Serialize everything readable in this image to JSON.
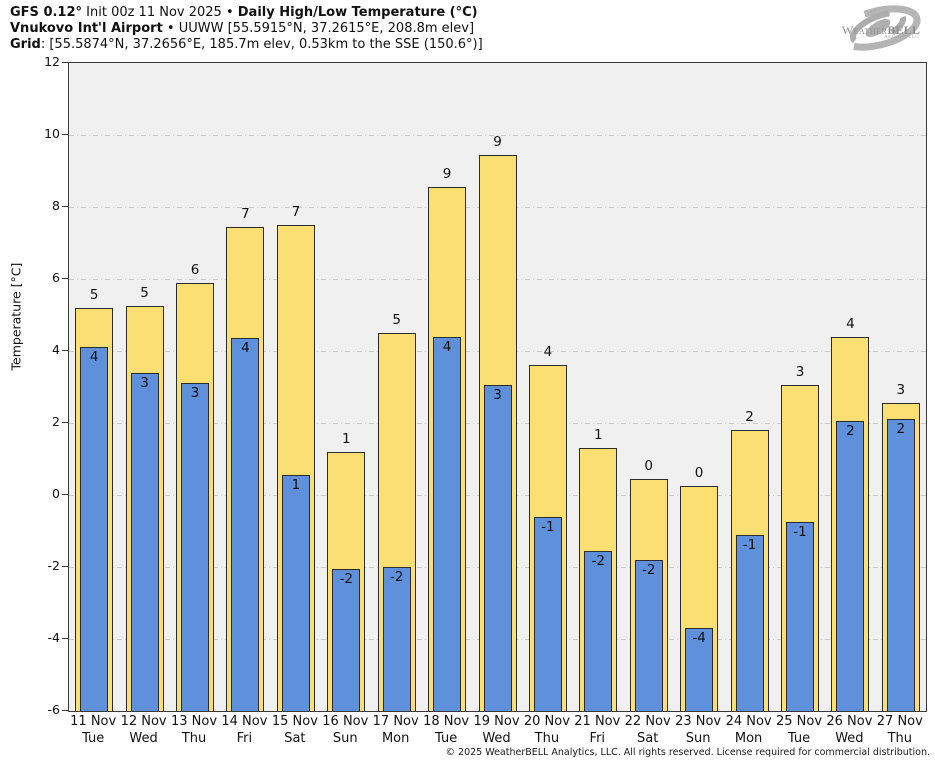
{
  "header": {
    "line1_bold1": "GFS 0.12°",
    "line1_mid": " Init 00z 11 Nov 2025 • ",
    "line1_bold2": "Daily High/Low Temperature (°C)",
    "line2_bold": "Vnukovo Int'l Airport",
    "line2_mid": " • UUWW [55.5915°N, 37.2615°E, 208.8m elev]",
    "line3_bold": "Grid",
    "line3_mid": ": [55.5874°N, 37.2656°E, 185.7m elev, 0.53km to the SSE (150.6°)]"
  },
  "logo": {
    "brand_weather": "Weather",
    "brand_bell": "BELL",
    "subtitle": "Analytics LLC"
  },
  "footer": {
    "copyright": "© 2025 WeatherBELL Analytics, LLC. All rights reserved. License required for commercial distribution."
  },
  "colors": {
    "high_bar": "#fbdf73",
    "low_bar": "#5f90dc",
    "bar_border": "#2b2b2b",
    "plot_bg": "#f0f0f0",
    "grid": "#c9c9c9"
  },
  "chart_data": {
    "type": "bar",
    "title": "Daily High/Low Temperature (°C)",
    "ylabel": "Temperature [°C]",
    "ylim": [
      -6,
      12
    ],
    "ytick_step": 2,
    "yticks": [
      12,
      10,
      8,
      6,
      4,
      2,
      0,
      -2,
      -4,
      -6
    ],
    "grid": "horizontal dash-dot",
    "legend": "none",
    "categories": [
      "11 Nov",
      "12 Nov",
      "13 Nov",
      "14 Nov",
      "15 Nov",
      "16 Nov",
      "17 Nov",
      "18 Nov",
      "19 Nov",
      "20 Nov",
      "21 Nov",
      "22 Nov",
      "23 Nov",
      "24 Nov",
      "25 Nov",
      "26 Nov",
      "27 Nov"
    ],
    "weekdays": [
      "Tue",
      "Wed",
      "Thu",
      "Fri",
      "Sat",
      "Sun",
      "Mon",
      "Tue",
      "Wed",
      "Thu",
      "Fri",
      "Sat",
      "Sun",
      "Mon",
      "Tue",
      "Wed",
      "Thu"
    ],
    "series": [
      {
        "name": "Daily High",
        "values": [
          5.2,
          5.25,
          5.9,
          7.45,
          7.5,
          1.2,
          4.5,
          8.55,
          9.45,
          3.6,
          1.3,
          0.45,
          0.25,
          1.8,
          3.05,
          4.4,
          2.55
        ],
        "labels": [
          "5",
          "5",
          "6",
          "7",
          "7",
          "1",
          "5",
          "9",
          "9",
          "4",
          "1",
          "0",
          "0",
          "2",
          "3",
          "4",
          "3"
        ]
      },
      {
        "name": "Daily Low",
        "values": [
          4.1,
          3.4,
          3.1,
          4.35,
          0.55,
          -2.05,
          -2.0,
          4.4,
          3.05,
          -0.6,
          -1.55,
          -1.8,
          -3.7,
          -1.1,
          -0.75,
          2.05,
          2.1
        ],
        "labels": [
          "4",
          "3",
          "3",
          "4",
          "1",
          "-2",
          "-2",
          "4",
          "3",
          "-1",
          "-2",
          "-2",
          "-4",
          "-1",
          "-1",
          "2",
          "2"
        ]
      }
    ]
  }
}
